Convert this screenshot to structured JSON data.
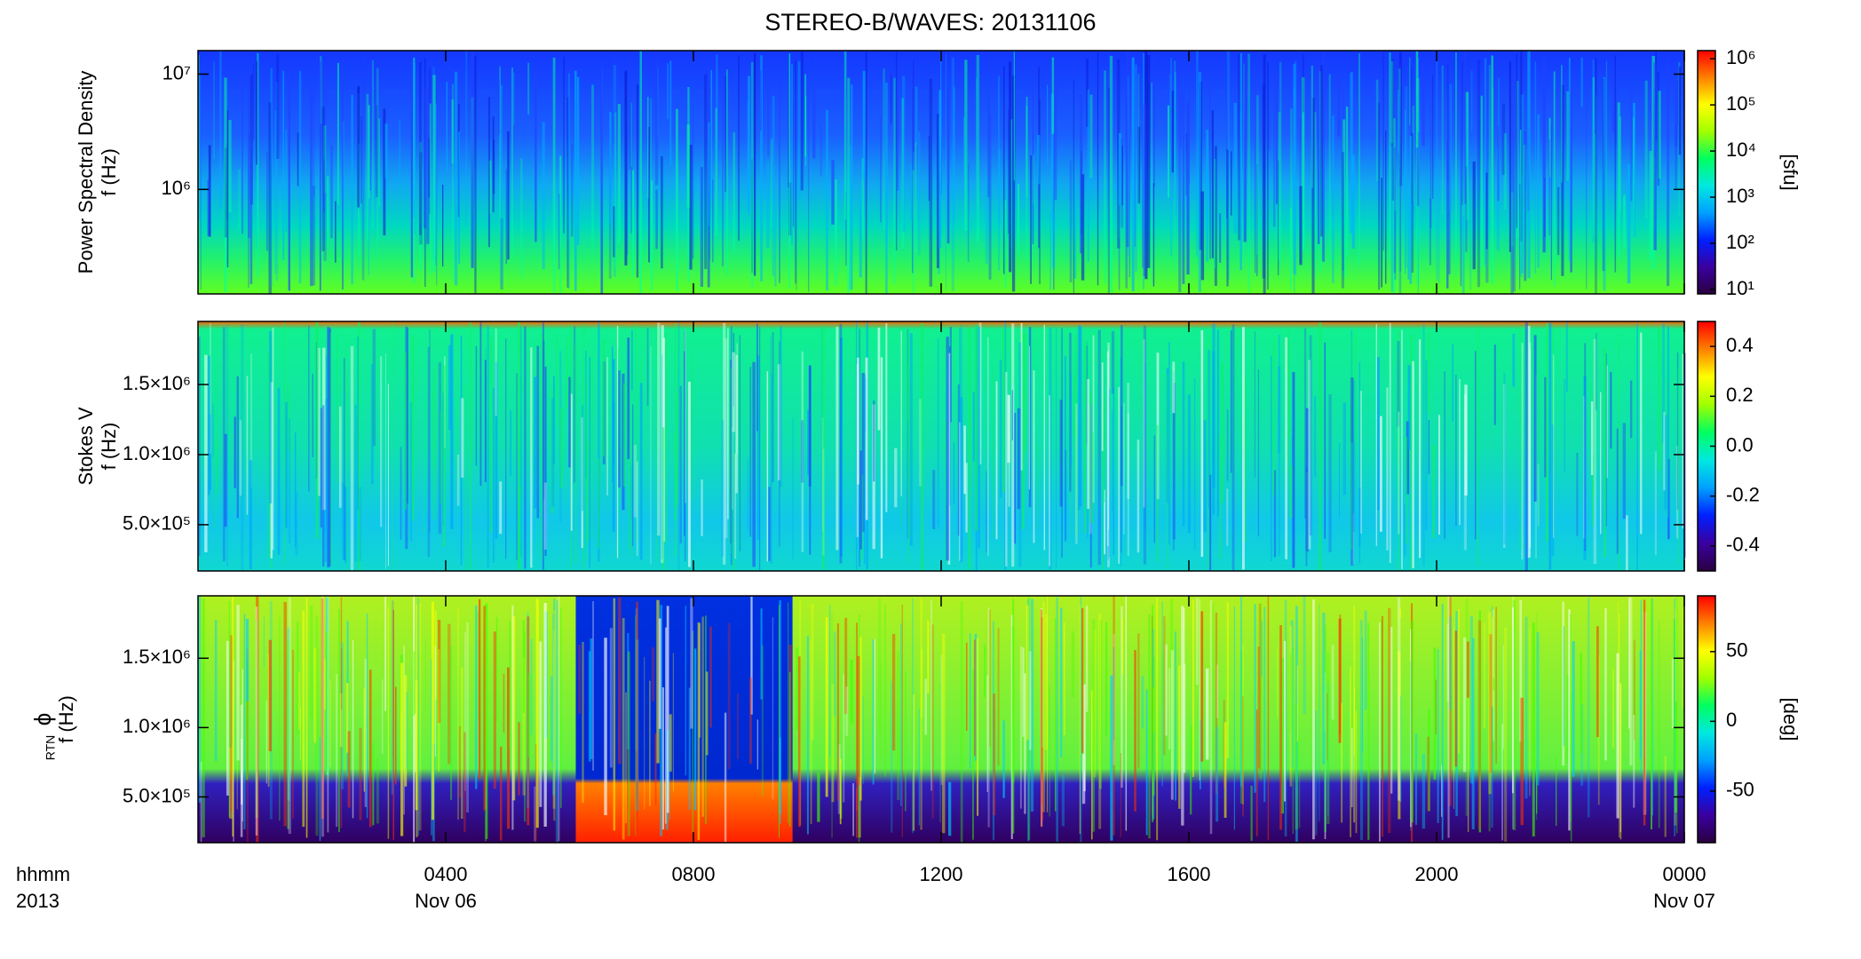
{
  "title": "STEREO-B/WAVES: 20131106",
  "x_axis": {
    "xlim": [
      0,
      24
    ],
    "xticks": [
      {
        "value": 4,
        "label": "0400"
      },
      {
        "value": 8,
        "label": "0800"
      },
      {
        "value": 12,
        "label": "1200"
      },
      {
        "value": 16,
        "label": "1600"
      },
      {
        "value": 20,
        "label": "2000"
      },
      {
        "value": 24,
        "label": "0000"
      }
    ],
    "date_labels": [
      {
        "value": 4,
        "label": "Nov 06"
      },
      {
        "value": 24,
        "label": "Nov 07"
      }
    ],
    "unit_labels": [
      "hhmm",
      "2013"
    ]
  },
  "colormap": [
    "#2a0040",
    "#3a00a0",
    "#0020ff",
    "#00a0ff",
    "#00e8e0",
    "#00ff60",
    "#a0ff00",
    "#ffff00",
    "#ff8000",
    "#ff0000"
  ],
  "chart_data": [
    {
      "type": "heatmap",
      "ylabel": "Power Spectral Density",
      "ylabel_units": "f (Hz)",
      "yscale": "log",
      "ylim": [
        124000,
        16000000
      ],
      "yticks": [
        {
          "value": 1000000,
          "label": "10⁶"
        },
        {
          "value": 10000000,
          "label": "10⁷"
        }
      ],
      "colorbar": {
        "scale": "log",
        "clim": [
          8,
          1500000
        ],
        "label": "[sfu]",
        "ticks": [
          {
            "value": 10,
            "label": "10¹"
          },
          {
            "value": 100,
            "label": "10²"
          },
          {
            "value": 1000,
            "label": "10³"
          },
          {
            "value": 10000,
            "label": "10⁴"
          },
          {
            "value": 100000,
            "label": "10⁵"
          },
          {
            "value": 1000000,
            "label": "10⁶"
          }
        ]
      }
    },
    {
      "type": "heatmap",
      "ylabel": "Stokes V",
      "ylabel_units": "f (Hz)",
      "yscale": "linear",
      "ylim": [
        170000,
        1950000
      ],
      "yticks": [
        {
          "value": 500000,
          "label": "5.0×10⁵"
        },
        {
          "value": 1000000,
          "label": "1.0×10⁶"
        },
        {
          "value": 1500000,
          "label": "1.5×10⁶"
        }
      ],
      "colorbar": {
        "scale": "linear",
        "clim": [
          -0.5,
          0.5
        ],
        "ticks": [
          {
            "value": -0.4,
            "label": "-0.4"
          },
          {
            "value": -0.2,
            "label": "-0.2"
          },
          {
            "value": 0,
            "label": "0.0"
          },
          {
            "value": 0.2,
            "label": "0.2"
          },
          {
            "value": 0.4,
            "label": "0.4"
          }
        ]
      }
    },
    {
      "type": "heatmap",
      "ylabel": "ϕ",
      "ylabel_subscript": "RTN",
      "ylabel_units": "f (Hz)",
      "yscale": "linear",
      "ylim": [
        170000,
        1950000
      ],
      "yticks": [
        {
          "value": 500000,
          "label": "5.0×10⁵"
        },
        {
          "value": 1000000,
          "label": "1.0×10⁶"
        },
        {
          "value": 1500000,
          "label": "1.5×10⁶"
        }
      ],
      "colorbar": {
        "scale": "linear",
        "clim": [
          -87,
          90
        ],
        "label": "[deg]",
        "ticks": [
          {
            "value": -50,
            "label": "-50"
          },
          {
            "value": 0,
            "label": "0"
          },
          {
            "value": 50,
            "label": "50"
          }
        ]
      }
    }
  ]
}
